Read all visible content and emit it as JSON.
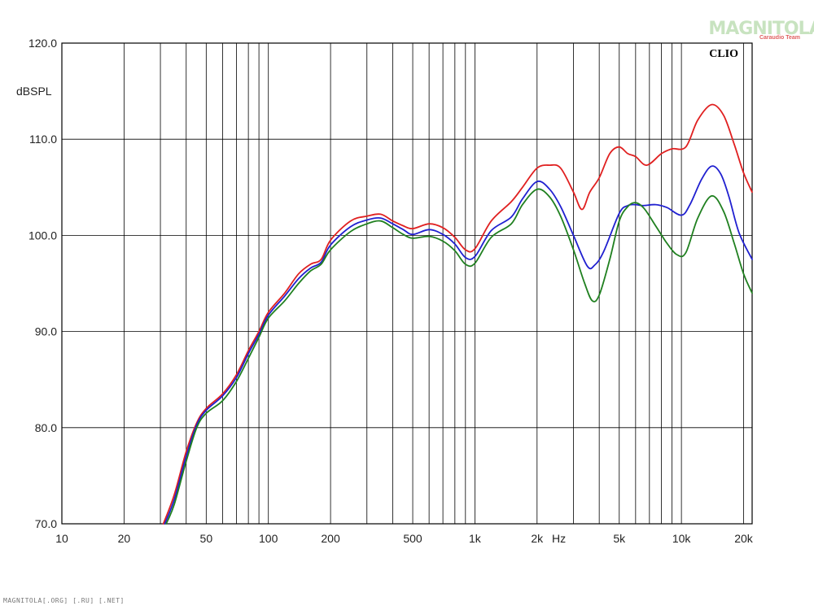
{
  "watermark": {
    "main": "MAGNITOLA",
    "sub": "Caraudio Team"
  },
  "footer": {
    "text": "MAGNITOLA[.ORG] [.RU] [.NET]"
  },
  "chart_data": {
    "type": "line",
    "brand": "CLIO",
    "xscale": "log",
    "xlim": [
      10,
      22000
    ],
    "ylim": [
      70,
      120
    ],
    "grid": true,
    "ylabel": "dBSPL",
    "xunit": "Hz",
    "yticks": [
      {
        "value": 70,
        "label": "70.0"
      },
      {
        "value": 80,
        "label": "80.0"
      },
      {
        "value": 90,
        "label": "90.0"
      },
      {
        "value": 100,
        "label": "100.0"
      },
      {
        "value": 110,
        "label": "110.0"
      },
      {
        "value": 120,
        "label": "120.0"
      }
    ],
    "xticks": [
      {
        "value": 10,
        "label": "10"
      },
      {
        "value": 20,
        "label": "20"
      },
      {
        "value": 50,
        "label": "50"
      },
      {
        "value": 100,
        "label": "100"
      },
      {
        "value": 200,
        "label": "200"
      },
      {
        "value": 500,
        "label": "500"
      },
      {
        "value": 1000,
        "label": "1k"
      },
      {
        "value": 2000,
        "label": "2k"
      },
      {
        "value": 5000,
        "label": "5k"
      },
      {
        "value": 10000,
        "label": "10k"
      },
      {
        "value": 20000,
        "label": "20k"
      }
    ],
    "xgrid": [
      10,
      20,
      30,
      40,
      50,
      60,
      70,
      80,
      90,
      100,
      200,
      300,
      400,
      500,
      600,
      700,
      800,
      900,
      1000,
      2000,
      3000,
      4000,
      5000,
      6000,
      7000,
      8000,
      9000,
      10000,
      20000
    ],
    "series": [
      {
        "color": "#e02020",
        "points": [
          [
            31,
            70
          ],
          [
            35,
            73
          ],
          [
            40,
            77.5
          ],
          [
            45,
            80.5
          ],
          [
            50,
            82
          ],
          [
            60,
            83.5
          ],
          [
            70,
            85.5
          ],
          [
            80,
            88
          ],
          [
            90,
            90
          ],
          [
            100,
            92
          ],
          [
            120,
            94
          ],
          [
            140,
            96
          ],
          [
            160,
            97
          ],
          [
            180,
            97.5
          ],
          [
            200,
            99.5
          ],
          [
            250,
            101.5
          ],
          [
            300,
            102
          ],
          [
            350,
            102.2
          ],
          [
            400,
            101.5
          ],
          [
            450,
            101
          ],
          [
            500,
            100.7
          ],
          [
            600,
            101.2
          ],
          [
            700,
            100.8
          ],
          [
            800,
            99.8
          ],
          [
            900,
            98.5
          ],
          [
            1000,
            98.6
          ],
          [
            1200,
            101.5
          ],
          [
            1500,
            103.5
          ],
          [
            1700,
            105
          ],
          [
            2000,
            107
          ],
          [
            2300,
            107.3
          ],
          [
            2600,
            107
          ],
          [
            3000,
            104.5
          ],
          [
            3300,
            102.7
          ],
          [
            3600,
            104.5
          ],
          [
            4000,
            106
          ],
          [
            4500,
            108.5
          ],
          [
            5000,
            109.2
          ],
          [
            5500,
            108.5
          ],
          [
            6000,
            108.2
          ],
          [
            6800,
            107.3
          ],
          [
            8000,
            108.5
          ],
          [
            9000,
            109
          ],
          [
            10500,
            109.2
          ],
          [
            12000,
            112
          ],
          [
            14000,
            113.6
          ],
          [
            16000,
            112.5
          ],
          [
            18000,
            109.5
          ],
          [
            20000,
            106.5
          ],
          [
            22000,
            104.5
          ]
        ]
      },
      {
        "color": "#2020d0",
        "points": [
          [
            31.5,
            70
          ],
          [
            35,
            72.5
          ],
          [
            40,
            77
          ],
          [
            45,
            80.3
          ],
          [
            50,
            81.8
          ],
          [
            60,
            83.3
          ],
          [
            70,
            85.2
          ],
          [
            80,
            87.7
          ],
          [
            90,
            89.7
          ],
          [
            100,
            91.7
          ],
          [
            120,
            93.7
          ],
          [
            140,
            95.5
          ],
          [
            160,
            96.6
          ],
          [
            180,
            97.2
          ],
          [
            200,
            99
          ],
          [
            250,
            100.9
          ],
          [
            300,
            101.6
          ],
          [
            350,
            101.8
          ],
          [
            400,
            101.2
          ],
          [
            450,
            100.6
          ],
          [
            500,
            100.1
          ],
          [
            600,
            100.6
          ],
          [
            700,
            100.1
          ],
          [
            800,
            99.1
          ],
          [
            900,
            97.7
          ],
          [
            1000,
            97.8
          ],
          [
            1200,
            100.5
          ],
          [
            1500,
            101.9
          ],
          [
            1700,
            103.8
          ],
          [
            2000,
            105.6
          ],
          [
            2300,
            104.8
          ],
          [
            2600,
            103
          ],
          [
            3000,
            100
          ],
          [
            3500,
            96.8
          ],
          [
            3800,
            96.9
          ],
          [
            4200,
            98.3
          ],
          [
            5000,
            102.3
          ],
          [
            5500,
            103.1
          ],
          [
            6000,
            103.2
          ],
          [
            6500,
            103.1
          ],
          [
            7500,
            103.2
          ],
          [
            8500,
            102.9
          ],
          [
            10000,
            102.1
          ],
          [
            11000,
            103.2
          ],
          [
            12500,
            105.8
          ],
          [
            14000,
            107.2
          ],
          [
            15500,
            106.4
          ],
          [
            17000,
            104
          ],
          [
            19000,
            100.3
          ],
          [
            22000,
            97.5
          ]
        ]
      },
      {
        "color": "#208020",
        "points": [
          [
            32,
            70
          ],
          [
            35,
            72
          ],
          [
            40,
            76.5
          ],
          [
            45,
            80
          ],
          [
            50,
            81.5
          ],
          [
            60,
            82.8
          ],
          [
            70,
            84.8
          ],
          [
            80,
            87.2
          ],
          [
            90,
            89.4
          ],
          [
            100,
            91.4
          ],
          [
            120,
            93.2
          ],
          [
            140,
            95
          ],
          [
            160,
            96.3
          ],
          [
            180,
            97
          ],
          [
            200,
            98.5
          ],
          [
            250,
            100.4
          ],
          [
            300,
            101.2
          ],
          [
            350,
            101.5
          ],
          [
            400,
            100.8
          ],
          [
            450,
            100.1
          ],
          [
            500,
            99.7
          ],
          [
            600,
            99.9
          ],
          [
            700,
            99.4
          ],
          [
            800,
            98.4
          ],
          [
            900,
            97
          ],
          [
            1000,
            97.1
          ],
          [
            1200,
            99.8
          ],
          [
            1500,
            101.2
          ],
          [
            1700,
            103.2
          ],
          [
            2000,
            104.8
          ],
          [
            2300,
            104
          ],
          [
            2600,
            102
          ],
          [
            3000,
            98.5
          ],
          [
            3400,
            95
          ],
          [
            3700,
            93.2
          ],
          [
            4000,
            93.8
          ],
          [
            4500,
            97.5
          ],
          [
            5000,
            101.5
          ],
          [
            5500,
            103
          ],
          [
            6000,
            103.4
          ],
          [
            6600,
            102.8
          ],
          [
            7500,
            101
          ],
          [
            8500,
            99.2
          ],
          [
            9500,
            98
          ],
          [
            10500,
            98.2
          ],
          [
            12000,
            101.8
          ],
          [
            14000,
            104.1
          ],
          [
            16000,
            102.5
          ],
          [
            18000,
            99.2
          ],
          [
            20000,
            96
          ],
          [
            22000,
            94
          ]
        ]
      }
    ]
  }
}
